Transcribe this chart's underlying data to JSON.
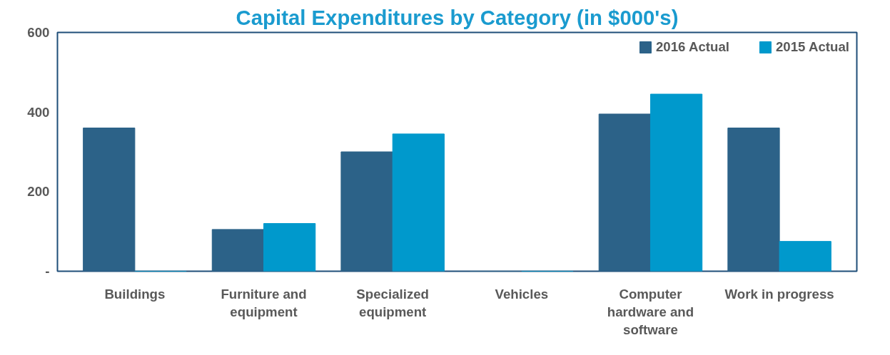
{
  "chart_data": {
    "type": "bar",
    "title": "Capital Expenditures by Category (in $000's)",
    "categories": [
      "Buildings",
      "Furniture and equipment",
      "Specialized equipment",
      "Vehicles",
      "Computer hardware and software",
      "Work in progress"
    ],
    "series": [
      {
        "name": "2016 Actual",
        "color": "#2c6288",
        "values": [
          360,
          105,
          300,
          0,
          395,
          360
        ]
      },
      {
        "name": "2015 Actual",
        "color": "#0099cc",
        "values": [
          0,
          120,
          345,
          0,
          445,
          75
        ]
      }
    ],
    "ylim": [
      0,
      600
    ],
    "yticks": [
      {
        "value": 0,
        "label": "-"
      },
      200,
      400,
      600
    ],
    "grid": false,
    "legend": "top right"
  }
}
